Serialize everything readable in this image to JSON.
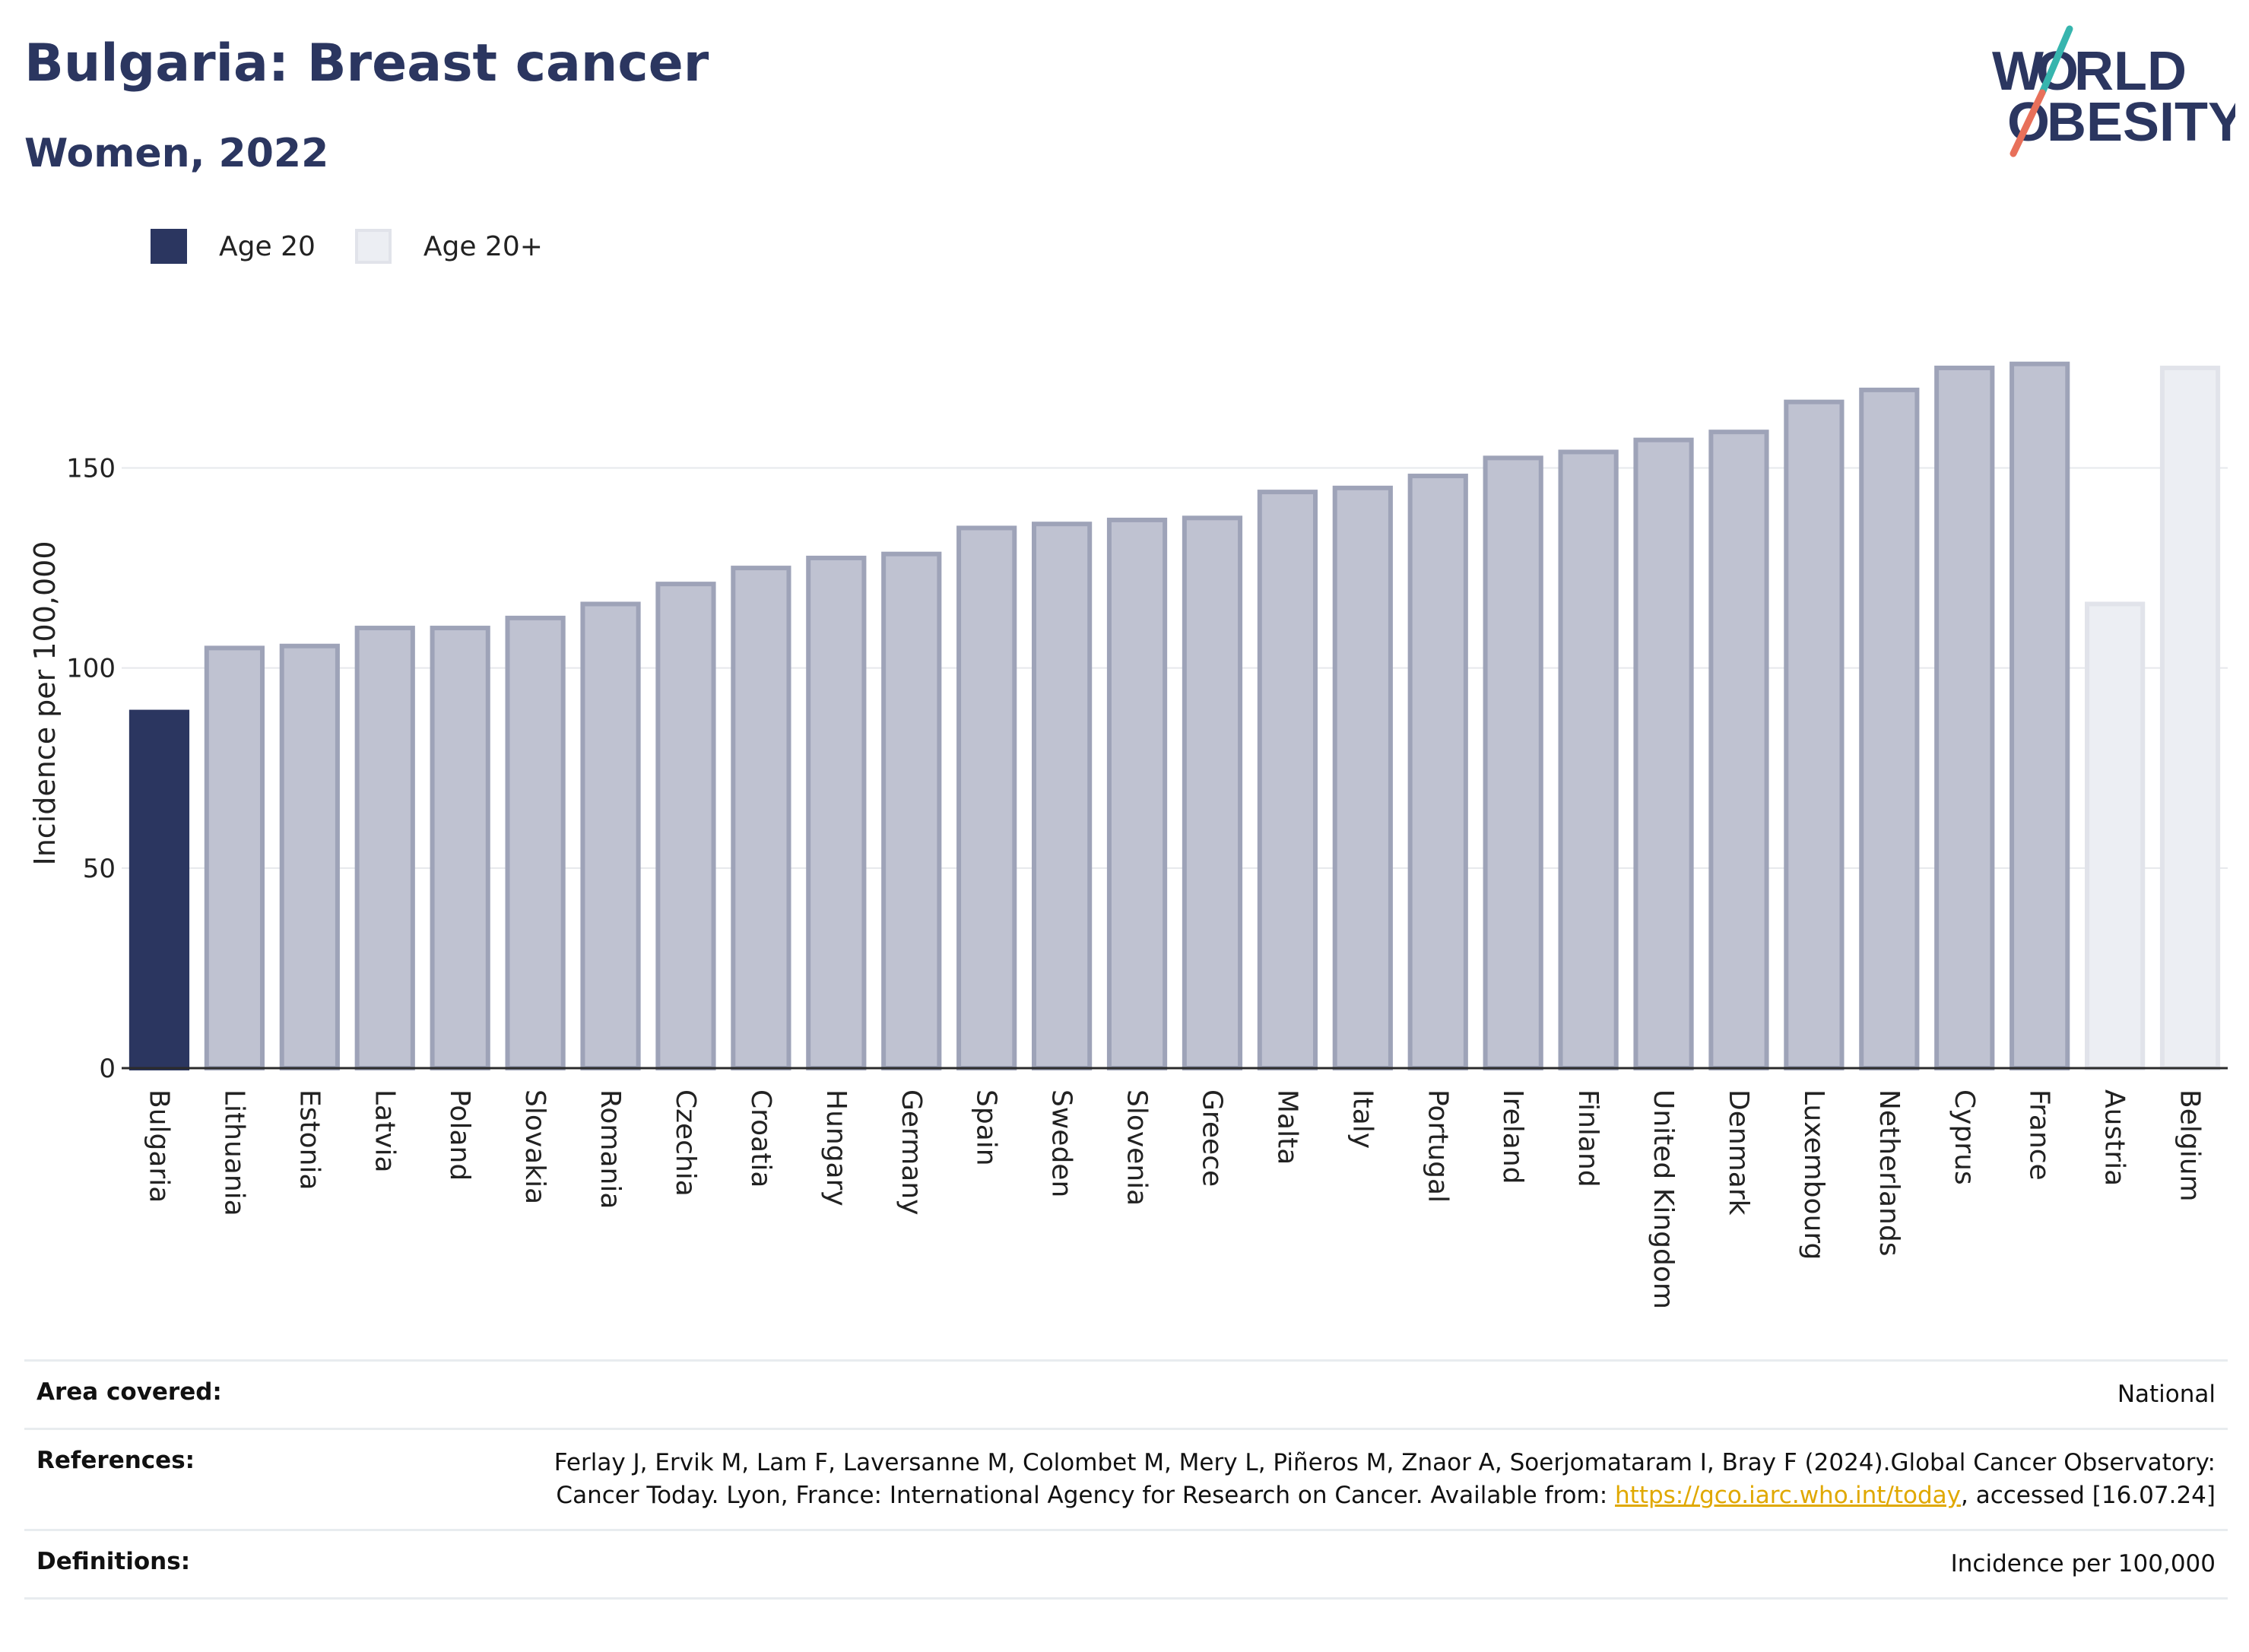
{
  "header": {
    "title": "Bulgaria: Breast cancer",
    "subtitle": "Women, 2022"
  },
  "logo": {
    "line1": "W",
    "o": "O",
    "line1_rest": "RLD",
    "line2_rest": "BESITY",
    "colors": {
      "navy": "#2b3660",
      "teal": "#37b5ae",
      "coral": "#e8705a"
    }
  },
  "legend": [
    {
      "label": "Age 20",
      "color": "#2b3660"
    },
    {
      "label": "Age 20+",
      "color": "#eceef3"
    }
  ],
  "chart_data": {
    "type": "bar",
    "ylabel": "Incidence per 100,000",
    "ylim": [
      0,
      190
    ],
    "yticks": [
      0,
      50,
      100,
      150
    ],
    "grid": true,
    "categories": [
      "Bulgaria",
      "Lithuania",
      "Estonia",
      "Latvia",
      "Poland",
      "Slovakia",
      "Romania",
      "Czechia",
      "Croatia",
      "Hungary",
      "Germany",
      "Spain",
      "Sweden",
      "Slovenia",
      "Greece",
      "Malta",
      "Italy",
      "Portugal",
      "Ireland",
      "Finland",
      "United Kingdom",
      "Denmark",
      "Luxembourg",
      "Netherlands",
      "Cyprus",
      "France",
      "Austria",
      "Belgium"
    ],
    "values": [
      89,
      105,
      105.5,
      110,
      110,
      112.5,
      116,
      121,
      125,
      127.5,
      128.5,
      135,
      136,
      137,
      137.5,
      144,
      145,
      148,
      152.5,
      154,
      157,
      159,
      166.5,
      169.5,
      175,
      176,
      116,
      175
    ],
    "groups": [
      "Age 20",
      "Age 20+",
      "Age 20+",
      "Age 20+",
      "Age 20+",
      "Age 20+",
      "Age 20+",
      "Age 20+",
      "Age 20+",
      "Age 20+",
      "Age 20+",
      "Age 20+",
      "Age 20+",
      "Age 20+",
      "Age 20+",
      "Age 20+",
      "Age 20+",
      "Age 20+",
      "Age 20+",
      "Age 20+",
      "Age 20+",
      "Age 20+",
      "Age 20+",
      "Age 20+",
      "Age 20+",
      "Age 20+",
      "Age 20+",
      "Age 20+"
    ],
    "highlight": "Bulgaria",
    "muted": [
      "Austria",
      "Belgium"
    ],
    "colors": {
      "highlight": "#2b3660",
      "other_fill": "#bfc2d1",
      "other_stroke": "#9ea3b8",
      "muted_fill": "#eceef3",
      "muted_stroke": "#e1e3ea"
    }
  },
  "footer": {
    "area_label": "Area covered:",
    "area_value": "National",
    "references_label": "References:",
    "references_pre": "Ferlay J, Ervik M, Lam F, Laversanne M, Colombet M, Mery L, Piñeros M, Znaor A, Soerjomataram I, Bray F (2024).Global Cancer Observatory: Cancer Today. Lyon, France: International Agency for Research on Cancer. Available from: ",
    "references_link": "https://gco.iarc.who.int/today",
    "references_post": ", accessed [16.07.24]",
    "definitions_label": "Definitions:",
    "definitions_value": "Incidence per 100,000"
  }
}
